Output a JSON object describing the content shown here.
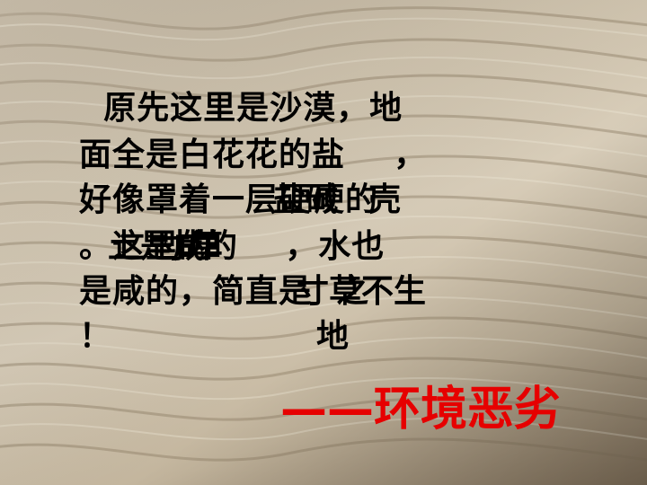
{
  "slide": {
    "lines": [
      "  原先这里是沙漠，地",
      "面全是白花花的盐    ，",
      "好像罩着一层硬硬的",
      "。这里的      ，水也",
      "是咸的，简直是  之",
      "！"
    ],
    "overlaps": [
      "壳",
      "土是咸的",
      "寸草不生",
      "地",
      "盐碱",
      "寸草"
    ],
    "conclusion": "——环境恶劣"
  },
  "colors": {
    "accent": "#e60000",
    "text": "#000000"
  }
}
